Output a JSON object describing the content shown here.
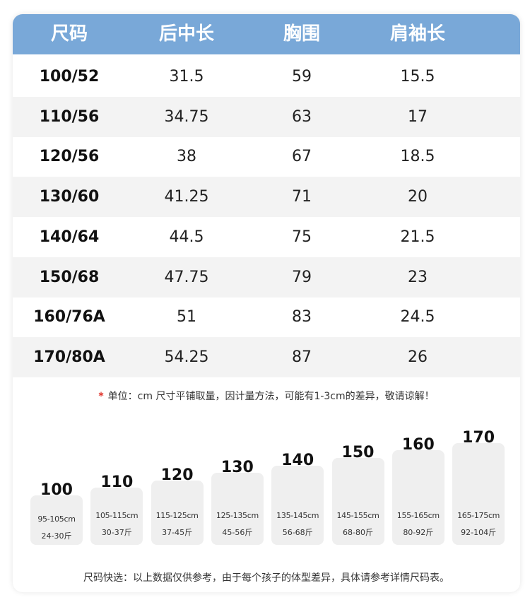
{
  "table": {
    "headers": [
      "尺码",
      "后中长",
      "胸围",
      "肩袖长"
    ],
    "rows": [
      [
        "100/52",
        "31.5",
        "59",
        "15.5"
      ],
      [
        "110/56",
        "34.75",
        "63",
        "17"
      ],
      [
        "120/56",
        "38",
        "67",
        "18.5"
      ],
      [
        "130/60",
        "41.25",
        "71",
        "20"
      ],
      [
        "140/64",
        "44.5",
        "75",
        "21.5"
      ],
      [
        "150/68",
        "47.75",
        "79",
        "23"
      ],
      [
        "160/76A",
        "51",
        "83",
        "24.5"
      ],
      [
        "170/80A",
        "54.25",
        "87",
        "26"
      ]
    ]
  },
  "note": {
    "star": "*",
    "text": "单位：cm  尺寸平铺取量，因计量方法，可能有1-3cm的差异，敬请谅解！"
  },
  "size_guide": [
    {
      "size": "100",
      "height": "95-105cm",
      "weight": "24-30斤"
    },
    {
      "size": "110",
      "height": "105-115cm",
      "weight": "30-37斤"
    },
    {
      "size": "120",
      "height": "115-125cm",
      "weight": "37-45斤"
    },
    {
      "size": "130",
      "height": "125-135cm",
      "weight": "45-56斤"
    },
    {
      "size": "140",
      "height": "135-145cm",
      "weight": "56-68斤"
    },
    {
      "size": "150",
      "height": "145-155cm",
      "weight": "68-80斤"
    },
    {
      "size": "160",
      "height": "155-165cm",
      "weight": "80-92斤"
    },
    {
      "size": "170",
      "height": "165-175cm",
      "weight": "92-104斤"
    }
  ],
  "footer": "尺码快选：以上数据仅供参考，由于每个孩子的体型差异，具体请参考详情尺码表。",
  "colors": {
    "header_bg": "#79a8d8",
    "row_shade": "#f3f3f3",
    "bar_bg": "#efefef",
    "star": "#e0342b"
  }
}
